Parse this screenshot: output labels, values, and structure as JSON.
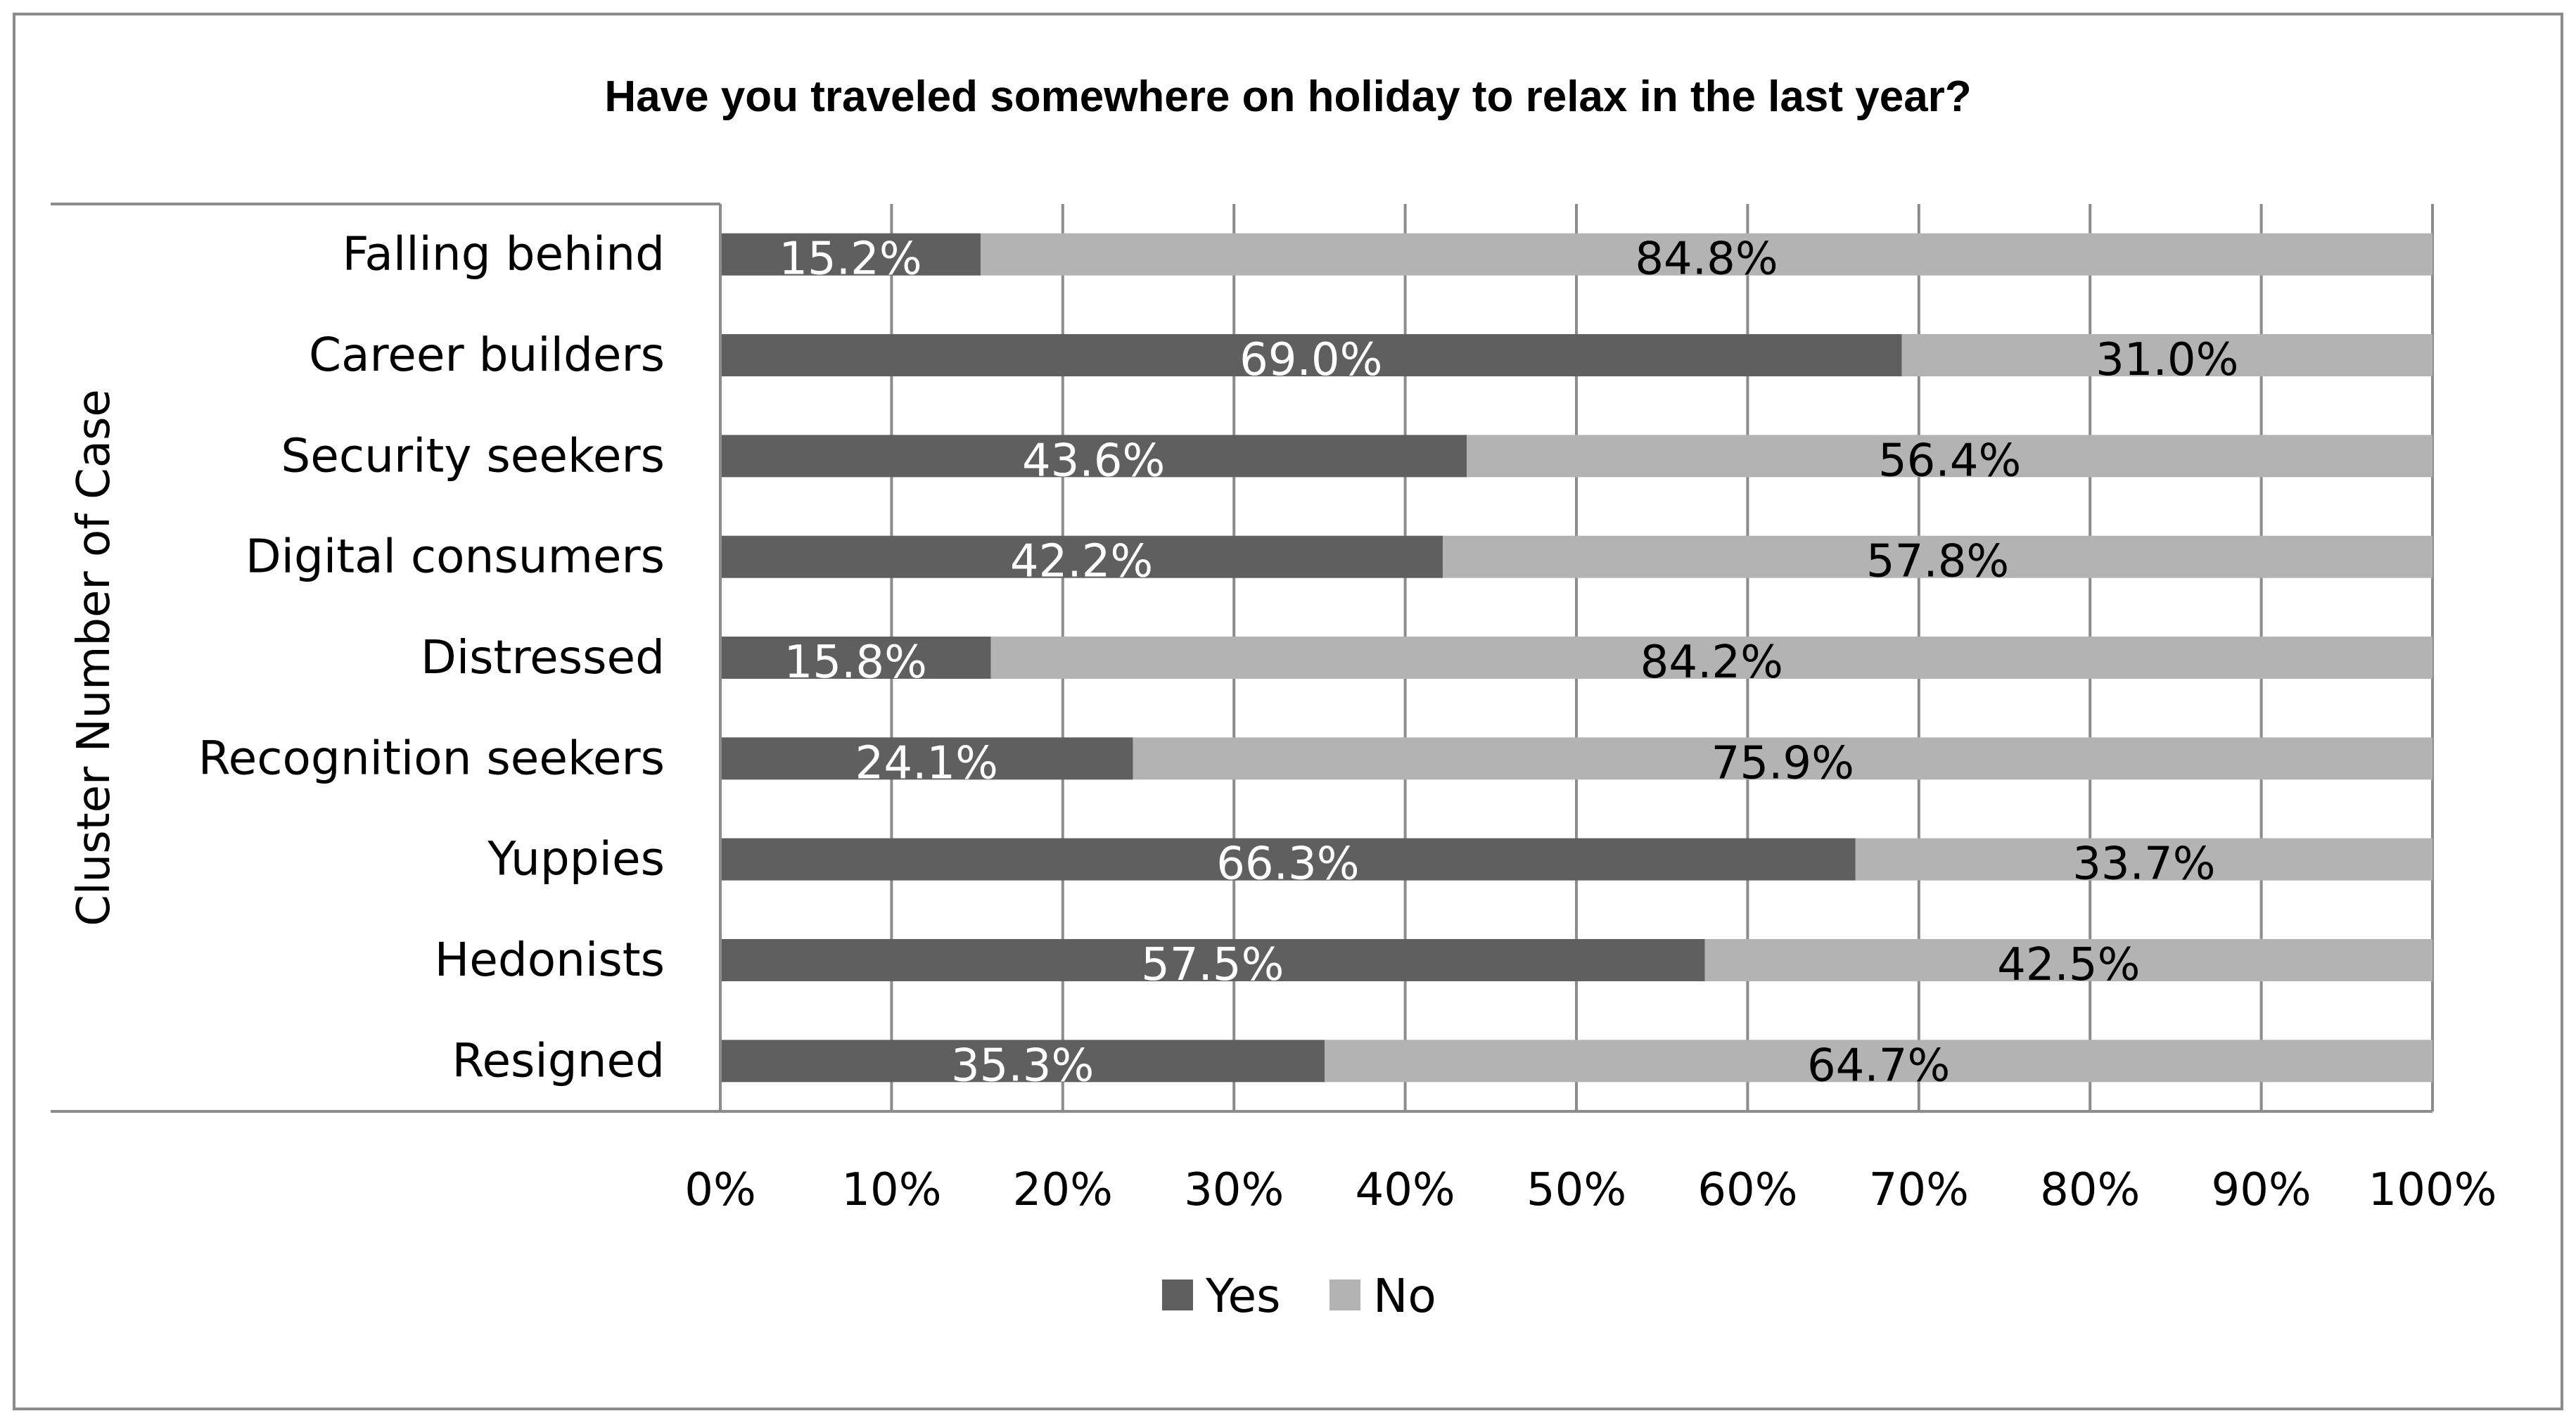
{
  "chart_data": {
    "type": "bar",
    "orientation": "horizontal",
    "stacked": true,
    "normalized_percent": true,
    "title": "Have you traveled somewhere on holiday to relax in the last year?",
    "ylabel": "Cluster Number of Case",
    "xlabel": "",
    "xlim": [
      0,
      100
    ],
    "x_ticks": [
      "0%",
      "10%",
      "20%",
      "30%",
      "40%",
      "50%",
      "60%",
      "70%",
      "80%",
      "90%",
      "100%"
    ],
    "categories": [
      "Falling behind",
      "Career builders",
      "Security seekers",
      "Digital consumers",
      "Distressed",
      "Recognition seekers",
      "Yuppies",
      "Hedonists",
      "Resigned"
    ],
    "series": [
      {
        "name": "Yes",
        "color": "#5f5f5f",
        "label_color": "#ffffff",
        "values": [
          15.2,
          69.0,
          43.6,
          42.2,
          15.8,
          24.1,
          66.3,
          57.5,
          35.3
        ],
        "labels": [
          "15.2%",
          "69.0%",
          "43.6%",
          "42.2%",
          "15.8%",
          "24.1%",
          "66.3%",
          "57.5%",
          "35.3%"
        ]
      },
      {
        "name": "No",
        "color": "#b3b3b3",
        "label_color": "#000000",
        "values": [
          84.8,
          31.0,
          56.4,
          57.8,
          84.2,
          75.9,
          33.7,
          42.5,
          64.7
        ],
        "labels": [
          "84.8%",
          "31.0%",
          "56.4%",
          "57.8%",
          "84.2%",
          "75.9%",
          "33.7%",
          "42.5%",
          "64.7%"
        ]
      }
    ],
    "grid": true,
    "legend_position": "bottom"
  }
}
